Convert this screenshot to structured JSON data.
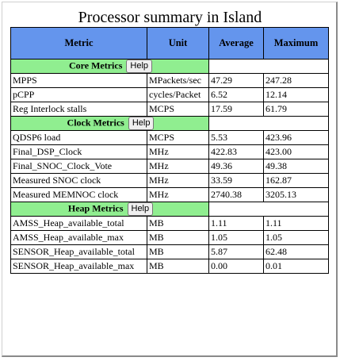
{
  "title": "Processor summary in Island",
  "headers": {
    "metric": "Metric",
    "unit": "Unit",
    "average": "Average",
    "maximum": "Maximum"
  },
  "help_label": "Help",
  "sections": [
    {
      "name": "Core Metrics",
      "rows": [
        {
          "metric": "MPPS",
          "unit": "MPackets/sec",
          "average": "47.29",
          "maximum": "247.28"
        },
        {
          "metric": "pCPP",
          "unit": "cycles/Packet",
          "average": "6.52",
          "maximum": "12.14"
        },
        {
          "metric": "Reg Interlock stalls",
          "unit": "MCPS",
          "average": "17.59",
          "maximum": "61.79"
        }
      ]
    },
    {
      "name": "Clock Metrics",
      "rows": [
        {
          "metric": "QDSP6 load",
          "unit": "MCPS",
          "average": "5.53",
          "maximum": "423.96"
        },
        {
          "metric": "Final_DSP_Clock",
          "unit": "MHz",
          "average": "422.83",
          "maximum": "423.00"
        },
        {
          "metric": "Final_SNOC_Clock_Vote",
          "unit": "MHz",
          "average": "49.36",
          "maximum": "49.38"
        },
        {
          "metric": "Measured SNOC clock",
          "unit": "MHz",
          "average": "33.59",
          "maximum": "162.87"
        },
        {
          "metric": "Measured MEMNOC clock",
          "unit": "MHz",
          "average": "2740.38",
          "maximum": "3205.13"
        }
      ]
    },
    {
      "name": "Heap Metrics",
      "rows": [
        {
          "metric": "AMSS_Heap_available_total",
          "unit": "MB",
          "average": "1.11",
          "maximum": "1.11"
        },
        {
          "metric": "AMSS_Heap_available_max",
          "unit": "MB",
          "average": "1.05",
          "maximum": "1.05"
        },
        {
          "metric": "SENSOR_Heap_available_total",
          "unit": "MB",
          "average": "5.87",
          "maximum": "62.48"
        },
        {
          "metric": "SENSOR_Heap_available_max",
          "unit": "MB",
          "average": "0.00",
          "maximum": "0.01"
        }
      ]
    }
  ]
}
